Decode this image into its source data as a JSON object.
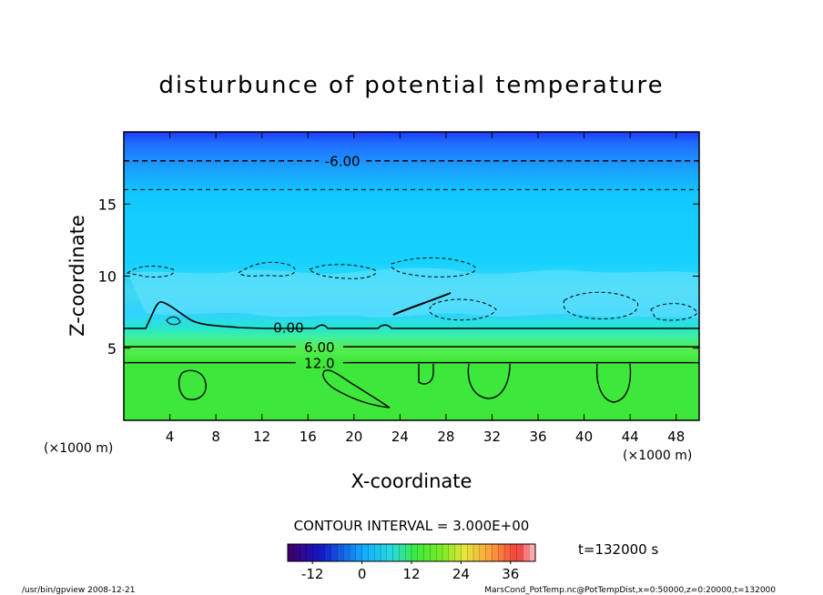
{
  "chart_data": {
    "type": "contour",
    "title": "disturbunce of potential temperature",
    "xlabel": "X-coordinate",
    "ylabel": "Z-coordinate",
    "x_unit_label": "(×1000 m)",
    "x_unit_label_right": "(×1000 m)",
    "y_unit_label": "(×1000 m)",
    "xlim": [
      0,
      50
    ],
    "ylim": [
      0,
      20
    ],
    "x_ticks": [
      "4",
      "8",
      "12",
      "16",
      "20",
      "24",
      "28",
      "32",
      "36",
      "40",
      "44",
      "48"
    ],
    "x_tick_values": [
      4,
      8,
      12,
      16,
      20,
      24,
      28,
      32,
      36,
      40,
      44,
      48
    ],
    "y_ticks": [
      "5",
      "10",
      "15"
    ],
    "y_tick_values": [
      5,
      10,
      15
    ],
    "contour_levels": [
      {
        "value": -6,
        "label": "-6.00",
        "style": "dashed",
        "z": 18.0,
        "label_x": 19
      },
      {
        "value": -3,
        "label": "",
        "style": "dashed",
        "z": 16.0
      },
      {
        "value": 0,
        "label": "0.00",
        "style": "solid",
        "z": 6.4,
        "label_x": 14
      },
      {
        "value": 6,
        "label": "6.00",
        "style": "solid",
        "z": 5.1,
        "label_x": 17
      },
      {
        "value": 12,
        "label": "12.0",
        "style": "solid",
        "z": 4.0,
        "label_x": 17
      }
    ],
    "contour_interval_label": "CONTOUR INTERVAL = 3.000E+00",
    "colorbar": {
      "min": -18,
      "max": 42,
      "ticks": [
        "-12",
        "0",
        "12",
        "24",
        "36"
      ],
      "tick_values": [
        -12,
        0,
        12,
        24,
        36
      ]
    },
    "time_label": "t=132000 s",
    "footer_left": "/usr/bin/gpview   2008-12-21",
    "footer_right": "MarsCond_PotTemp.nc@PotTempDist,x=0:50000,z=0:20000,t=132000"
  }
}
